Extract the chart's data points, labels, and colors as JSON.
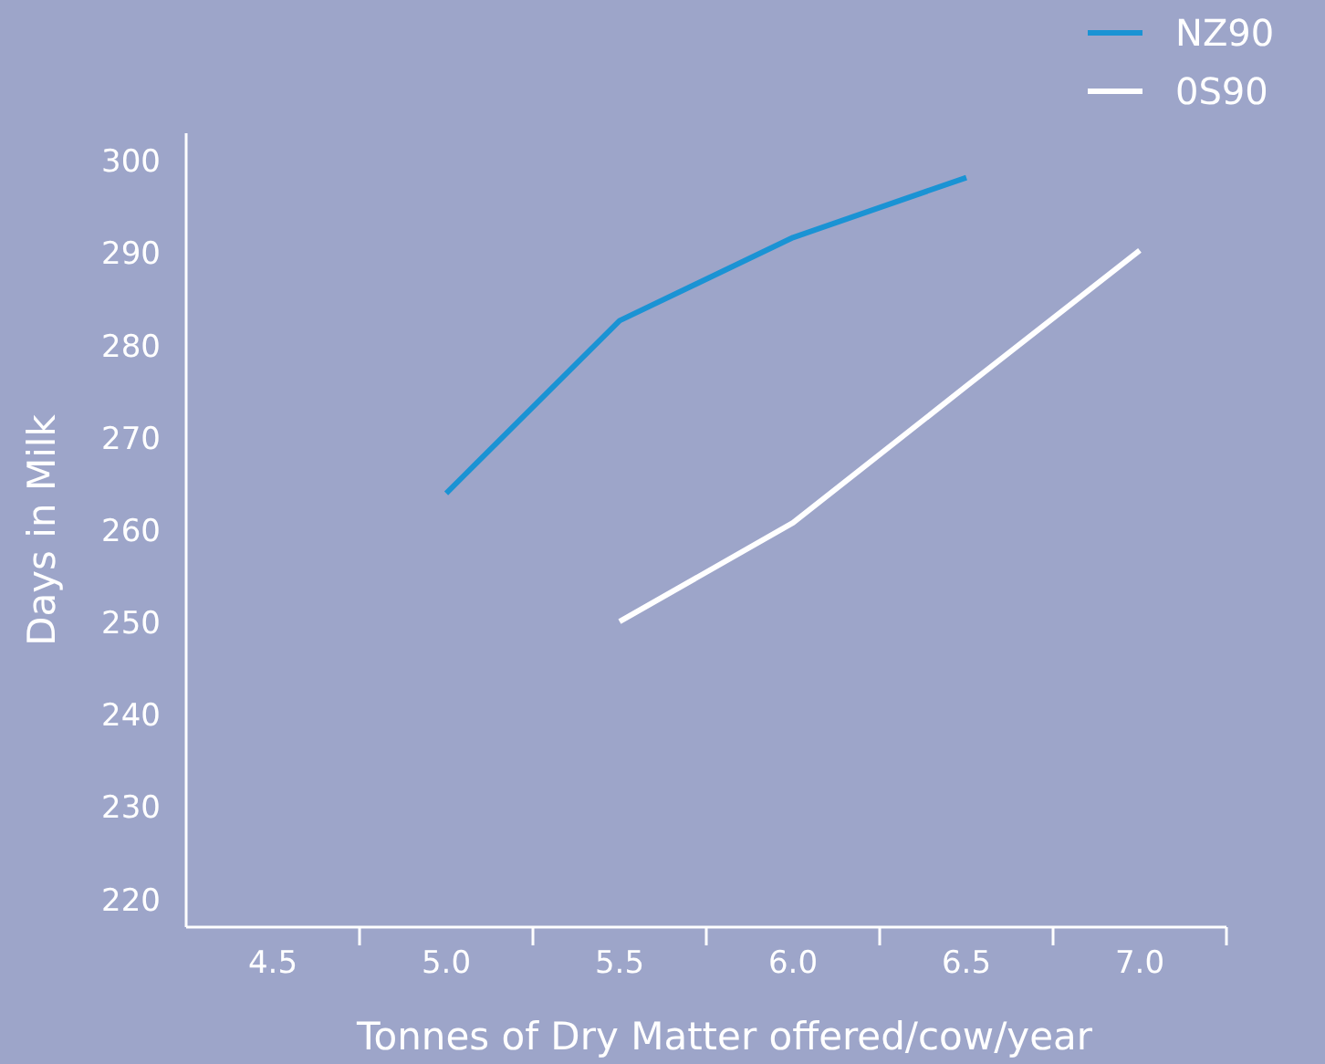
{
  "chart_data": {
    "type": "line",
    "xlabel": "Tonnes of Dry Matter offered/cow/year",
    "ylabel": "Days in Milk",
    "xlim": [
      4.25,
      7.25
    ],
    "xticks": [
      {
        "value": 4.5,
        "label": "4.5"
      },
      {
        "value": 4.75,
        "label": null
      },
      {
        "value": 5.0,
        "label": "5.0"
      },
      {
        "value": 5.25,
        "label": null
      },
      {
        "value": 5.5,
        "label": "5.5"
      },
      {
        "value": 5.75,
        "label": null
      },
      {
        "value": 6.0,
        "label": "6.0"
      },
      {
        "value": 6.25,
        "label": null
      },
      {
        "value": 6.5,
        "label": "6.5"
      },
      {
        "value": 6.75,
        "label": null
      },
      {
        "value": 7.0,
        "label": "7.0"
      },
      {
        "value": 7.25,
        "label": null
      }
    ],
    "ylim": [
      217,
      303
    ],
    "yticks": [
      220,
      230,
      240,
      250,
      260,
      270,
      280,
      290,
      300
    ],
    "legend": "top right",
    "marker": "none",
    "line_style": "solid",
    "grid": false,
    "series": [
      {
        "name": "NZ90",
        "color": "#1a93d4",
        "x": [
          5.0,
          5.5,
          6.0,
          6.5
        ],
        "values": [
          264,
          282.7,
          291.7,
          298.2
        ]
      },
      {
        "name": "0S90",
        "color": "#ffffff",
        "x": [
          5.5,
          6.0,
          6.5,
          7.0
        ],
        "values": [
          250.1,
          260.8,
          275.6,
          290.3
        ]
      }
    ]
  }
}
